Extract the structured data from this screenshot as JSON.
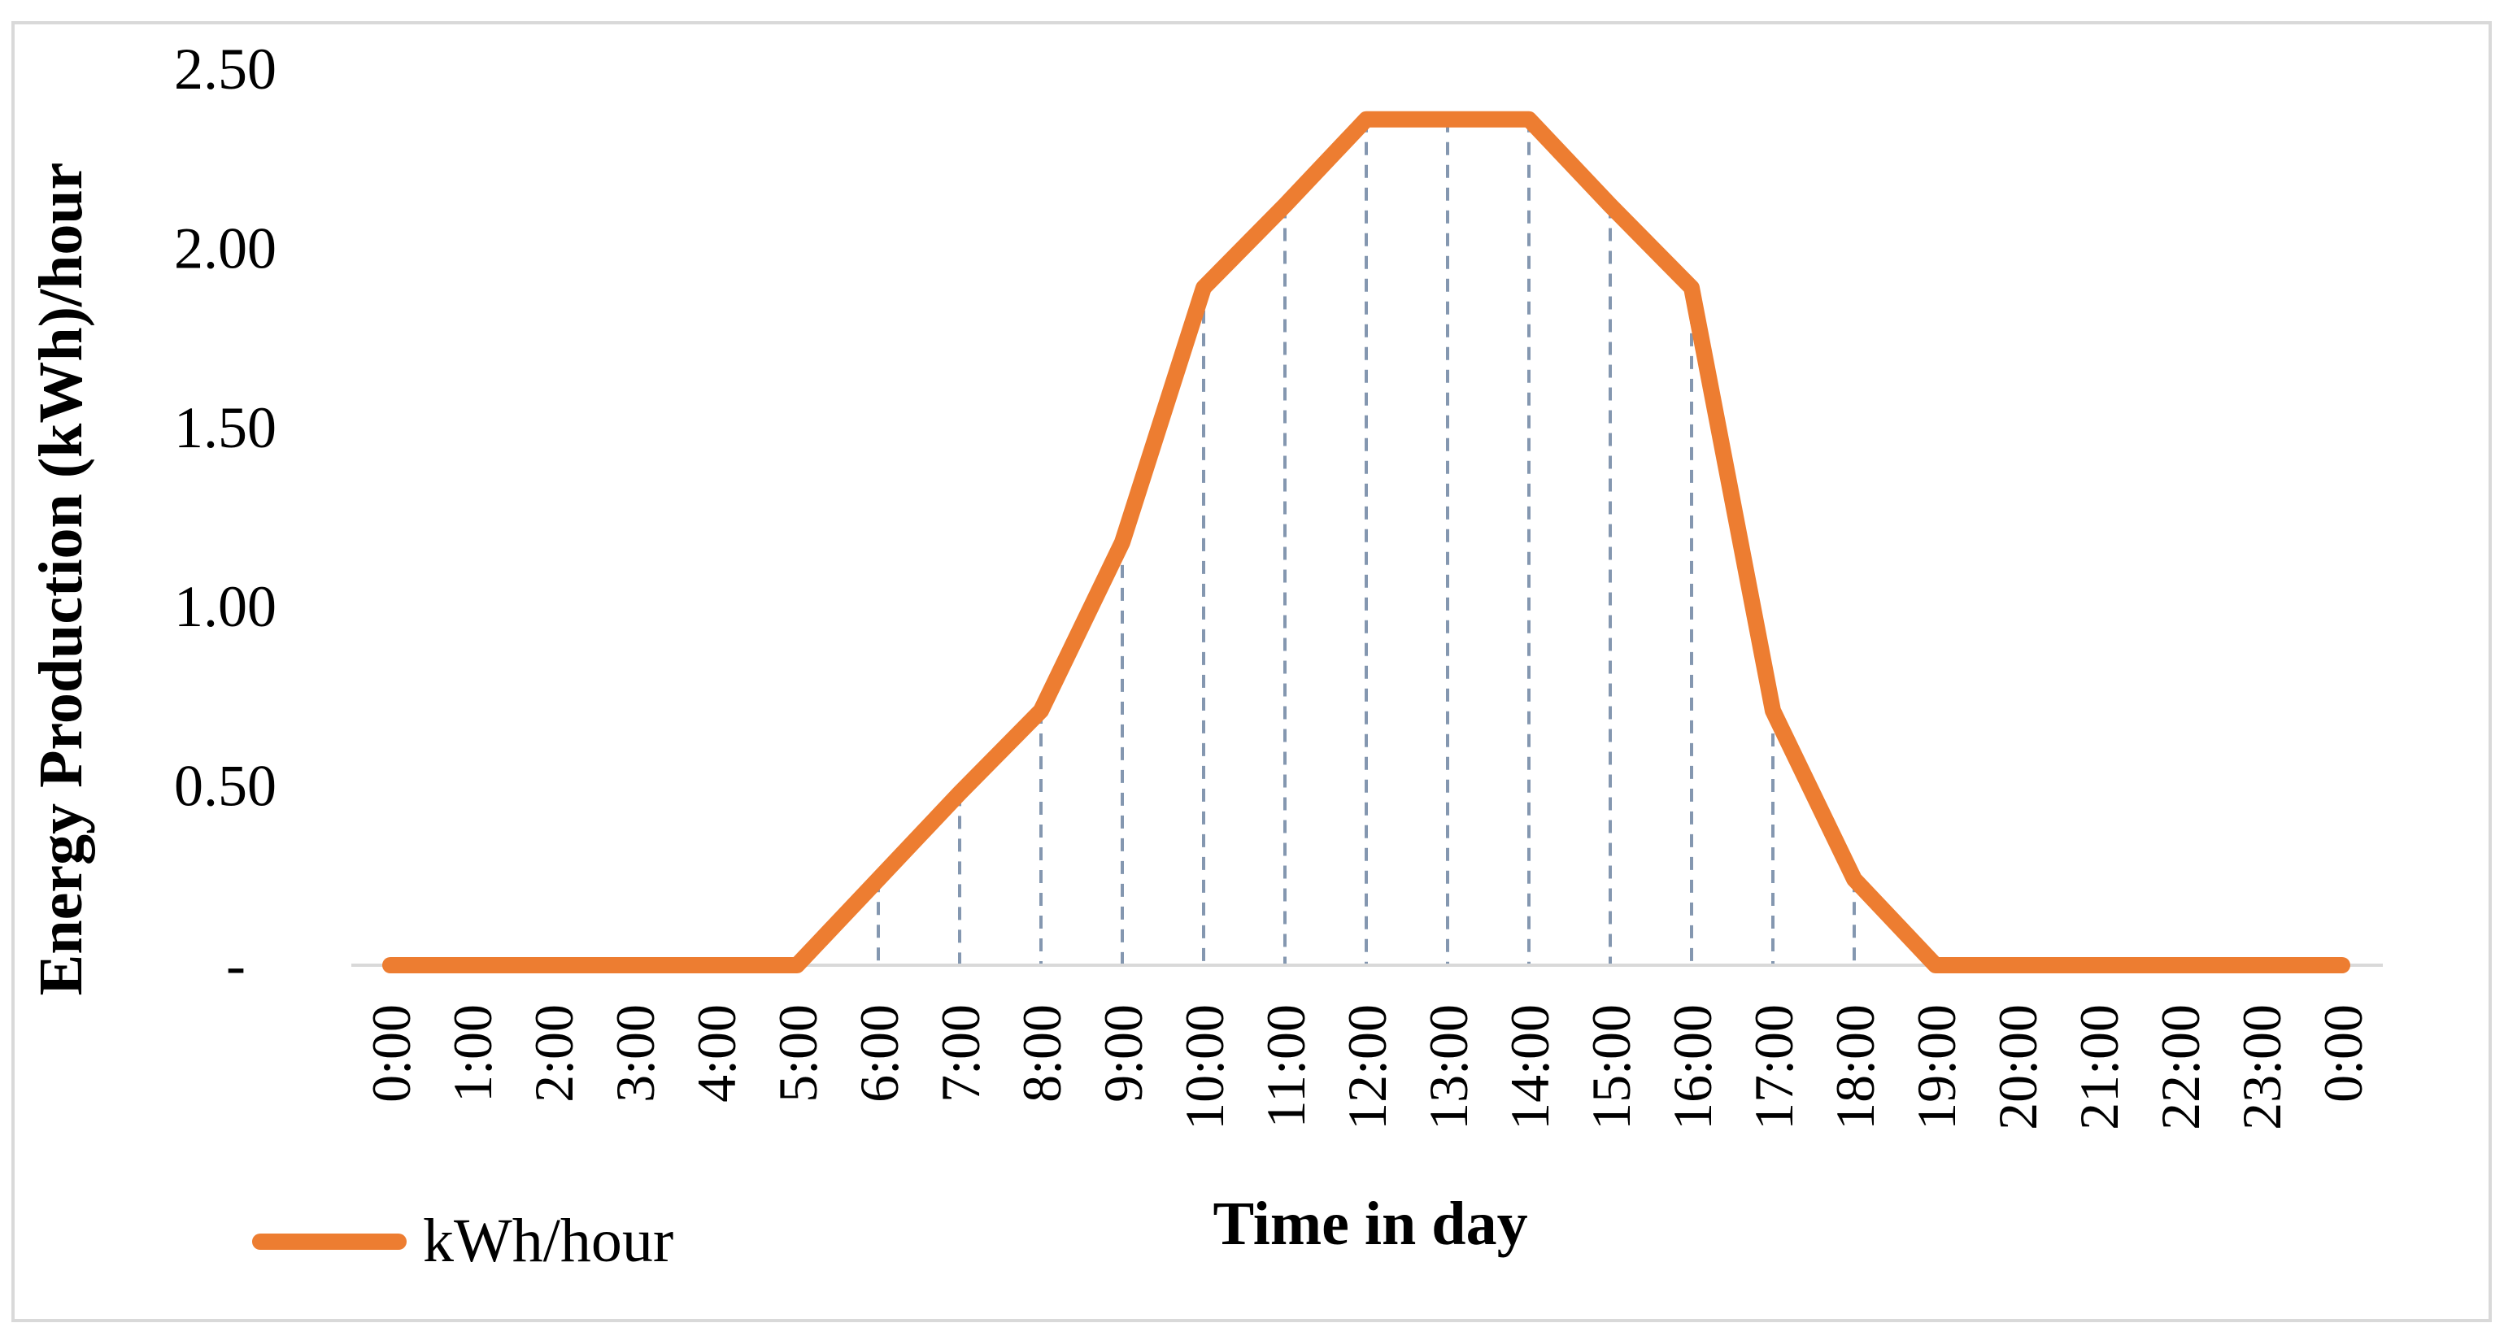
{
  "chart_data": {
    "type": "line",
    "title": "",
    "xlabel": "Time in day",
    "ylabel": "Energy Production (kWh)/hour",
    "categories": [
      "0:00",
      "1:00",
      "2:00",
      "3:00",
      "4:00",
      "5:00",
      "6:00",
      "7:00",
      "8:00",
      "9:00",
      "10:00",
      "11:00",
      "12:00",
      "13:00",
      "14:00",
      "15:00",
      "16:00",
      "17:00",
      "18:00",
      "19:00",
      "20:00",
      "21:00",
      "22:00",
      "23:00",
      "0:00"
    ],
    "series": [
      {
        "name": "kWh/hour",
        "color": "#ED7D31",
        "values": [
          0,
          0,
          0,
          0,
          0,
          0,
          0.24,
          0.48,
          0.71,
          1.18,
          1.89,
          2.12,
          2.36,
          2.36,
          2.36,
          2.12,
          1.89,
          0.71,
          0.24,
          0,
          0,
          0,
          0,
          0,
          0
        ]
      }
    ],
    "ylim": [
      0,
      2.5
    ],
    "yticks": [
      0,
      0.5,
      1.0,
      1.5,
      2.0,
      2.5
    ],
    "ytick_labels": [
      "-",
      "0.50",
      "1.00",
      "1.50",
      "2.00",
      "2.50"
    ],
    "drop_lines": true,
    "drop_line_color": "#8497B0",
    "axis_color": "#D9D9D9",
    "border_color": "#D9D9D9",
    "grid": false,
    "legend_position": "bottom-left"
  }
}
